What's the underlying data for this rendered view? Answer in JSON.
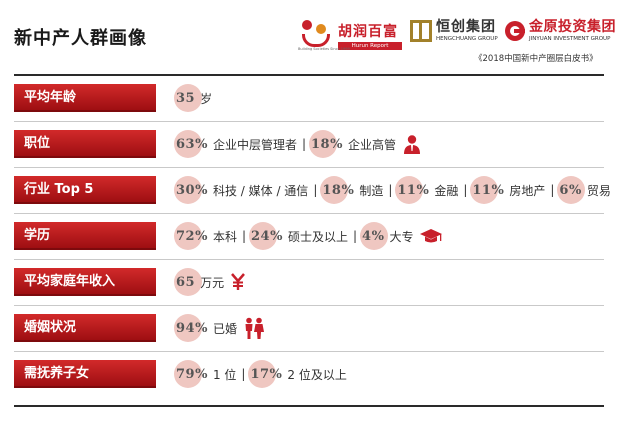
{
  "title": "新中产人群画像",
  "source": "《2018中国新中产圈层白皮书》",
  "logos": {
    "hurun": {
      "name": "胡润百富",
      "tagline": "Hurun Report",
      "tiny": "Building Societies Since 1999"
    },
    "hengchuang": {
      "name": "恒创集团",
      "sub": "HENGCHUANG GROUP"
    },
    "jinyuan": {
      "name": "金原投资集团",
      "sub": "JINYUAN INVESTMENT GROUP"
    }
  },
  "rows": [
    {
      "label": "平均年龄",
      "items": [
        {
          "num": "35",
          "text": "岁"
        }
      ]
    },
    {
      "label": "职位",
      "items": [
        {
          "num": "63%",
          "text": "企业中层管理者"
        },
        {
          "num": "18%",
          "text": "企业高管"
        }
      ],
      "icon": "executive-icon"
    },
    {
      "label": "行业 Top 5",
      "items": [
        {
          "num": "30%",
          "text": "科技 / 媒体 / 通信"
        },
        {
          "num": "18%",
          "text": "制造"
        },
        {
          "num": "11%",
          "text": "金融"
        },
        {
          "num": "11%",
          "text": "房地产"
        },
        {
          "num": "6%",
          "text": "贸易"
        }
      ]
    },
    {
      "label": "学历",
      "items": [
        {
          "num": "72%",
          "text": "本科"
        },
        {
          "num": "24%",
          "text": "硕士及以上"
        },
        {
          "num": "4%",
          "text": "大专"
        }
      ],
      "icon": "graduation-cap-icon"
    },
    {
      "label": "平均家庭年收入",
      "items": [
        {
          "num": "65",
          "text": "万元"
        }
      ],
      "icon": "yuan-icon"
    },
    {
      "label": "婚姻状况",
      "items": [
        {
          "num": "94%",
          "text": "已婚"
        }
      ],
      "icon": "couple-icon"
    },
    {
      "label": "需抚养子女",
      "items": [
        {
          "num": "79%",
          "text": "1 位"
        },
        {
          "num": "17%",
          "text": "2 位及以上"
        }
      ]
    }
  ],
  "separator": "|",
  "colors": {
    "accent": "#c8202b",
    "circle": "#efc7c1"
  }
}
